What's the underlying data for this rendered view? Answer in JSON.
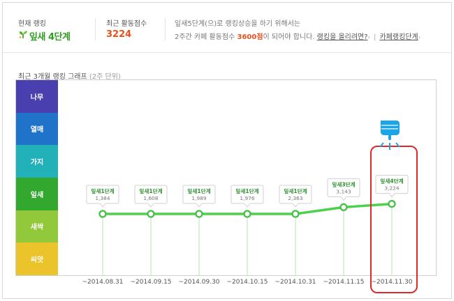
{
  "summary": {
    "rank_label": "현재 랭킹",
    "rank_value": "잎새 4단계",
    "score_label": "최근 활동점수",
    "score_value": "3224",
    "notice_line1": "잎새5단계(으)로 랭킹상승을 하기 위해서는",
    "notice_line2_pre": "2주간 카페 활동점수 ",
    "notice_line2_points": "3600점",
    "notice_line2_post": "이 되어야 합니다.",
    "link_raise": "랭킹을 올리려면?",
    "link_levels": "카페랭킹단계"
  },
  "graph": {
    "title": "최근 3개월 랭킹 그래프",
    "unit": "(2주 단위)"
  },
  "chart_data": {
    "type": "line",
    "levels": [
      {
        "name": "나무",
        "color": "#4a3fae"
      },
      {
        "name": "열매",
        "color": "#1f74c9"
      },
      {
        "name": "가지",
        "color": "#22b1b8"
      },
      {
        "name": "잎새",
        "color": "#33a82f"
      },
      {
        "name": "새싹",
        "color": "#92c93a"
      },
      {
        "name": "씨앗",
        "color": "#ebc42b"
      }
    ],
    "x": [
      "~2014.08.31",
      "~2014.09.15",
      "~2014.09.30",
      "~2014.10.15",
      "~2014.10.31",
      "~2014.11.15",
      "~2014.11.30"
    ],
    "points": [
      {
        "stage": "잎새1단계",
        "score": "1,384",
        "level": 1
      },
      {
        "stage": "잎새1단계",
        "score": "1,608",
        "level": 1
      },
      {
        "stage": "잎새1단계",
        "score": "1,989",
        "level": 1
      },
      {
        "stage": "잎새1단계",
        "score": "1,976",
        "level": 1
      },
      {
        "stage": "잎새1단계",
        "score": "2,363",
        "level": 1
      },
      {
        "stage": "잎새3단계",
        "score": "3,143",
        "level": 3
      },
      {
        "stage": "잎새4단계",
        "score": "3,224",
        "level": 4
      }
    ],
    "line_color": "#4cd14c",
    "highlight_color": "#e02828"
  }
}
